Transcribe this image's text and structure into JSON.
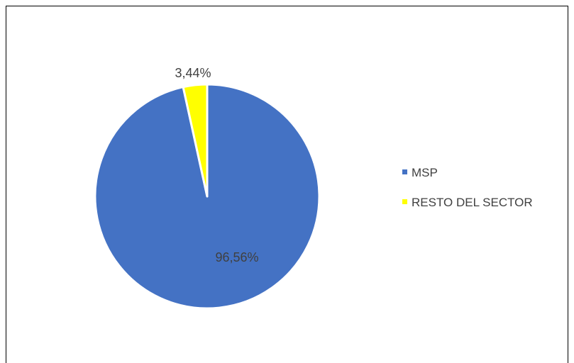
{
  "chart_data": {
    "type": "pie",
    "title": "",
    "categories": [
      "MSP",
      "RESTO DEL SECTOR"
    ],
    "values": [
      96.56,
      3.44
    ],
    "data_labels": [
      "96,56%",
      "3,44%"
    ],
    "colors": [
      "#4472C4",
      "#FFFF00"
    ],
    "start_angle": "12 o'clock",
    "direction": "clockwise",
    "legend_position": "right"
  }
}
